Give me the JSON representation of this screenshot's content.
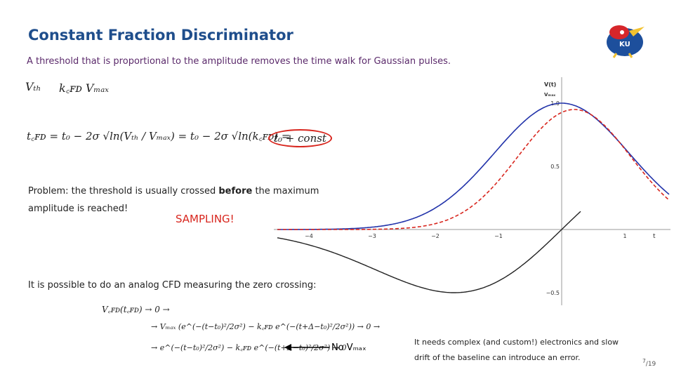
{
  "header": {
    "title": "Constant Fraction Discriminator",
    "subtitle": "A threshold that is proportional to the amplitude removes the time walk for Gaussian pulses."
  },
  "equations": {
    "threshold": [
      "Vₜₕ",
      "k꜀ꜰᴅ Vₘₐₓ"
    ],
    "tcfd": [
      "t꜀ꜰᴅ = t₀ − 2σ √ln(Vₜₕ / Vₘₐₓ) = t₀ − 2σ √ln(k꜀ꜰᴅ) =",
      "t₀ + const"
    ],
    "zero_crossing": [
      "V꜀ꜰᴅ(t꜀ꜰᴅ) → 0 →",
      "→ Vₘₐₓ (e^(−(t−t₀)²/2σ²) − k꜀ꜰᴅ e^(−(t+Δ−t₀)²/2σ²)) → 0 →",
      "→ e^(−(t−t₀)²/2σ²) − k꜀ꜰᴅ e^(−(t+Δ−t₀)²/2σ²) → 0"
    ]
  },
  "problem": {
    "before": "Problem: the threshold is usually crossed",
    "bold": "before",
    "after": "the maximum",
    "line2": "amplitude is reached!"
  },
  "sampling": "SAMPLING!",
  "plot": {
    "y_label": "V(t)",
    "y_label_denominator": "Vₘₐₓ",
    "x_label": "t",
    "x_ticks": [
      "−4",
      "−3",
      "−2",
      "−1",
      "1"
    ],
    "y_ticks": [
      "1.0",
      "0.5",
      "−0.5"
    ]
  },
  "analog": "It is possible to do an analog CFD measuring the zero crossing:",
  "arrow_note": "No Vₘₐₓ",
  "note": [
    "It needs complex (and custom!) electronics and slow",
    "drift of the baseline can introduce an error."
  ],
  "page": {
    "number": "7",
    "total": "/19"
  }
}
